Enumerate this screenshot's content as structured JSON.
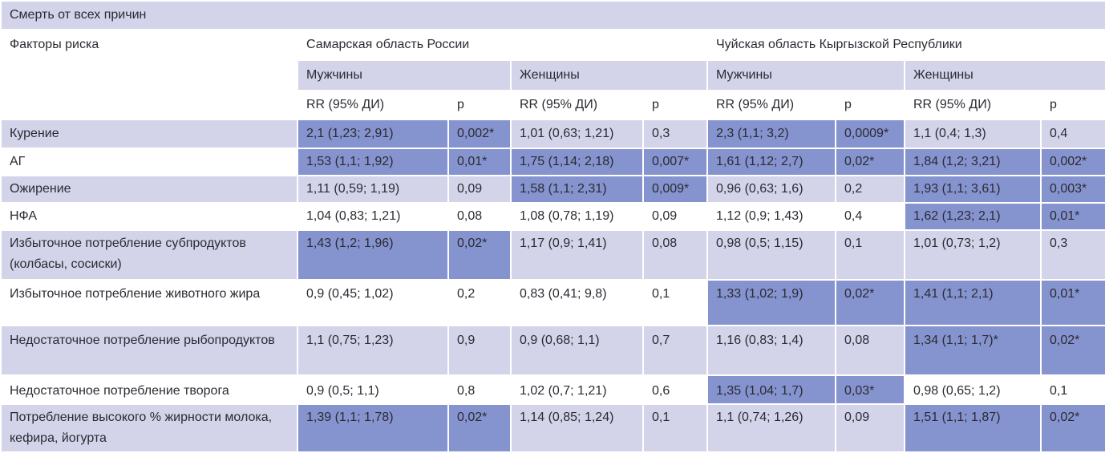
{
  "title": "Смерть от всех причин",
  "header": {
    "factor_label": "Факторы риска",
    "region_1": "Самарская область России",
    "region_2": "Чуйская область Кыргызской Республики",
    "men": "Мужчины",
    "women": "Женщины",
    "rr": "RR (95% ДИ)",
    "p": "р"
  },
  "colors": {
    "light": "#d3d3ea",
    "white": "#ffffff",
    "highlight": "#8593cf"
  },
  "rows": [
    {
      "factor": "Курение",
      "cells": [
        {
          "v": "2,1 (1,23; 2,91)",
          "hl": true
        },
        {
          "v": "0,002*",
          "hl": true
        },
        {
          "v": "1,01 (0,63; 1,21)",
          "hl": false
        },
        {
          "v": "0,3",
          "hl": false
        },
        {
          "v": "2,3 (1,1; 3,2)",
          "hl": true
        },
        {
          "v": "0,0009*",
          "hl": true
        },
        {
          "v": "1,1 (0,4; 1,3)",
          "hl": false
        },
        {
          "v": "0,4",
          "hl": false
        }
      ]
    },
    {
      "factor": "АГ",
      "cells": [
        {
          "v": "1,53 (1,1; 1,92)",
          "hl": true
        },
        {
          "v": "0,01*",
          "hl": true
        },
        {
          "v": "1,75 (1,14; 2,18)",
          "hl": true
        },
        {
          "v": "0,007*",
          "hl": true
        },
        {
          "v": "1,61 (1,12; 2,7)",
          "hl": true
        },
        {
          "v": "0,02*",
          "hl": true
        },
        {
          "v": "1,84 (1,2; 3,21)",
          "hl": true
        },
        {
          "v": "0,002*",
          "hl": true
        }
      ]
    },
    {
      "factor": "Ожирение",
      "cells": [
        {
          "v": "1,11 (0,59; 1,19)",
          "hl": false
        },
        {
          "v": "0,09",
          "hl": false
        },
        {
          "v": "1,58 (1,1; 2,31)",
          "hl": true
        },
        {
          "v": "0,009*",
          "hl": true
        },
        {
          "v": "0,96 (0,63; 1,6)",
          "hl": false
        },
        {
          "v": "0,2",
          "hl": false
        },
        {
          "v": "1,93 (1,1; 3,61)",
          "hl": true
        },
        {
          "v": "0,003*",
          "hl": true
        }
      ]
    },
    {
      "factor": "НФА",
      "cells": [
        {
          "v": "1,04 (0,83; 1,21)",
          "hl": false
        },
        {
          "v": "0,08",
          "hl": false
        },
        {
          "v": "1,08 (0,78; 1,19)",
          "hl": false
        },
        {
          "v": "0,09",
          "hl": false
        },
        {
          "v": "1,12 (0,9; 1,43)",
          "hl": false
        },
        {
          "v": "0,4",
          "hl": false
        },
        {
          "v": "1,62 (1,23; 2,1)",
          "hl": true
        },
        {
          "v": "0,01*",
          "hl": true
        }
      ]
    },
    {
      "factor": "Избыточное потребление субпродуктов (колбасы, сосиски)",
      "cells": [
        {
          "v": "1,43 (1,2; 1,96)",
          "hl": true
        },
        {
          "v": "0,02*",
          "hl": true
        },
        {
          "v": "1,17 (0,9; 1,41)",
          "hl": false
        },
        {
          "v": "0,08",
          "hl": false
        },
        {
          "v": "0,98 (0,5; 1,15)",
          "hl": false
        },
        {
          "v": "0,1",
          "hl": false
        },
        {
          "v": "1,01 (0,73; 1,2)",
          "hl": false
        },
        {
          "v": "0,3",
          "hl": false
        }
      ]
    },
    {
      "factor": "Избыточное потребление животного жира",
      "cells": [
        {
          "v": "0,9 (0,45; 1,02)",
          "hl": false
        },
        {
          "v": "0,2",
          "hl": false
        },
        {
          "v": "0,83 (0,41; 9,8)",
          "hl": false
        },
        {
          "v": "0,1",
          "hl": false
        },
        {
          "v": "1,33 (1,02; 1,9)",
          "hl": true
        },
        {
          "v": "0,02*",
          "hl": true
        },
        {
          "v": "1,41 (1,1; 2,1)",
          "hl": true
        },
        {
          "v": "0,01*",
          "hl": true
        }
      ]
    },
    {
      "factor": "Недостаточное потребление рыбопродуктов",
      "cells": [
        {
          "v": "1,1 (0,75; 1,23)",
          "hl": false
        },
        {
          "v": "0,9",
          "hl": false
        },
        {
          "v": "0,9 (0,68; 1,1)",
          "hl": false
        },
        {
          "v": "0,7",
          "hl": false
        },
        {
          "v": "1,16 (0,83; 1,4)",
          "hl": false
        },
        {
          "v": "0,08",
          "hl": false
        },
        {
          "v": "1,34 (1,1; 1,7)*",
          "hl": true
        },
        {
          "v": "0,02*",
          "hl": true
        }
      ]
    },
    {
      "factor": "Недостаточное потребление творога",
      "cells": [
        {
          "v": "0,9 (0,5; 1,1)",
          "hl": false
        },
        {
          "v": "0,8",
          "hl": false
        },
        {
          "v": "1,02 (0,7; 1,21)",
          "hl": false
        },
        {
          "v": "0,6",
          "hl": false
        },
        {
          "v": "1,35 (1,04; 1,7)",
          "hl": true
        },
        {
          "v": "0,03*",
          "hl": true
        },
        {
          "v": "0,98 (0,65; 1,2)",
          "hl": false
        },
        {
          "v": "0,1",
          "hl": false
        }
      ]
    },
    {
      "factor": "Потребление высокого % жирности молока, кефира, йогурта",
      "cells": [
        {
          "v": "1,39 (1,1; 1,78)",
          "hl": true
        },
        {
          "v": "0,02*",
          "hl": true
        },
        {
          "v": "1,14 (0,85; 1,24)",
          "hl": false
        },
        {
          "v": "0,1",
          "hl": false
        },
        {
          "v": "1,1 (0,74; 1,26)",
          "hl": false
        },
        {
          "v": "0,09",
          "hl": false
        },
        {
          "v": "1,51 (1,1; 1,87)",
          "hl": true
        },
        {
          "v": "0,02*",
          "hl": true
        }
      ]
    }
  ]
}
